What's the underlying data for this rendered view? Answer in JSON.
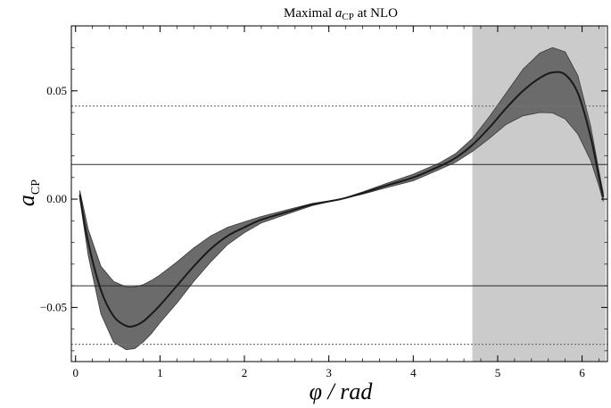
{
  "chart_data": {
    "type": "line",
    "title": {
      "prefix": "Maximal ",
      "symbol": "a",
      "subscript": "CP",
      "suffix": " at NLO"
    },
    "xlabel": "φ / rad",
    "ylabel": {
      "symbol": "a",
      "subscript": "CP"
    },
    "xlim": [
      -0.05,
      6.3
    ],
    "ylim": [
      -0.075,
      0.08
    ],
    "x_ticks": [
      0,
      1,
      2,
      3,
      4,
      5,
      6
    ],
    "x_tick_labels": [
      "0",
      "1",
      "2",
      "3",
      "4",
      "5",
      "6"
    ],
    "y_ticks": [
      -0.05,
      0.0,
      0.05
    ],
    "y_tick_labels": [
      "−0.05",
      "0.00",
      "0.05"
    ],
    "grid": false,
    "shaded_region": {
      "x_start": 4.7,
      "x_end": 6.28,
      "color": "#cbcbcb"
    },
    "reference_lines": [
      {
        "style": "solid",
        "y": 0.016,
        "color": "#2b2b2b"
      },
      {
        "style": "solid",
        "y": -0.04,
        "color": "#2b2b2b"
      },
      {
        "style": "dotted",
        "y": 0.043,
        "color": "#777777"
      },
      {
        "style": "dotted",
        "y": -0.067,
        "color": "#777777"
      }
    ],
    "central_color": "#1a1a1a",
    "band_color": "#6b6b6b",
    "series": [
      {
        "role": "central",
        "x": [
          0.05,
          0.15,
          0.3,
          0.45,
          0.6,
          0.7,
          0.8,
          0.9,
          1.0,
          1.2,
          1.4,
          1.6,
          1.8,
          2.0,
          2.2,
          2.5,
          2.8,
          3.14,
          3.4,
          3.7,
          4.0,
          4.3,
          4.5,
          4.7,
          4.9,
          5.1,
          5.3,
          5.5,
          5.65,
          5.8,
          5.95,
          6.1,
          6.2,
          6.25
        ],
        "y": [
          0.002,
          -0.02,
          -0.042,
          -0.054,
          -0.0585,
          -0.0585,
          -0.0565,
          -0.053,
          -0.049,
          -0.04,
          -0.031,
          -0.023,
          -0.017,
          -0.013,
          -0.0095,
          -0.006,
          -0.0025,
          0.0,
          0.0028,
          0.0065,
          0.01,
          0.015,
          0.019,
          0.025,
          0.033,
          0.042,
          0.05,
          0.056,
          0.0585,
          0.0575,
          0.049,
          0.029,
          0.01,
          0.001
        ]
      },
      {
        "role": "band-upper",
        "x": [
          0.05,
          0.15,
          0.3,
          0.45,
          0.6,
          0.7,
          0.8,
          0.9,
          1.0,
          1.2,
          1.4,
          1.6,
          1.8,
          2.0,
          2.2,
          2.5,
          2.8,
          3.14,
          3.4,
          3.7,
          4.0,
          4.3,
          4.5,
          4.7,
          4.9,
          5.1,
          5.3,
          5.5,
          5.65,
          5.8,
          5.95,
          6.1,
          6.2,
          6.25
        ],
        "y": [
          0.004,
          -0.014,
          -0.031,
          -0.038,
          -0.0405,
          -0.0405,
          -0.0395,
          -0.0375,
          -0.035,
          -0.029,
          -0.0225,
          -0.017,
          -0.013,
          -0.0105,
          -0.008,
          -0.005,
          -0.002,
          0.0,
          0.0033,
          0.0075,
          0.0115,
          0.0165,
          0.021,
          0.028,
          0.038,
          0.049,
          0.06,
          0.0675,
          0.07,
          0.068,
          0.057,
          0.034,
          0.013,
          0.003
        ]
      },
      {
        "role": "band-lower",
        "x": [
          0.05,
          0.15,
          0.3,
          0.45,
          0.6,
          0.7,
          0.8,
          0.9,
          1.0,
          1.2,
          1.4,
          1.6,
          1.8,
          2.0,
          2.2,
          2.5,
          2.8,
          3.14,
          3.4,
          3.7,
          4.0,
          4.3,
          4.5,
          4.7,
          4.9,
          5.1,
          5.3,
          5.5,
          5.65,
          5.8,
          5.95,
          6.1,
          6.2,
          6.25
        ],
        "y": [
          0.0,
          -0.026,
          -0.053,
          -0.066,
          -0.0695,
          -0.069,
          -0.066,
          -0.062,
          -0.057,
          -0.048,
          -0.038,
          -0.029,
          -0.021,
          -0.0155,
          -0.011,
          -0.007,
          -0.003,
          0.0,
          0.0023,
          0.0055,
          0.0085,
          0.0135,
          0.017,
          0.022,
          0.028,
          0.0345,
          0.0385,
          0.04,
          0.0398,
          0.037,
          0.03,
          0.018,
          0.006,
          -0.001
        ]
      }
    ]
  }
}
